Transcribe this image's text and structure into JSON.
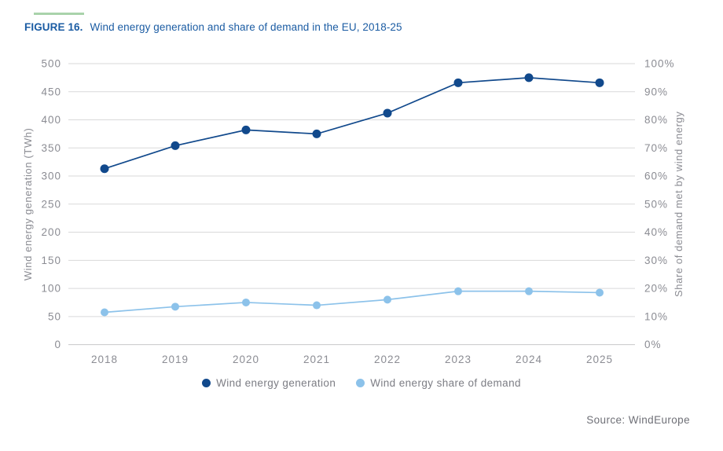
{
  "figure": {
    "label": "FIGURE 16.",
    "title": "Wind energy generation and share of demand in the EU, 2018-25"
  },
  "source": "Source: WindEurope",
  "colors": {
    "accent_green": "#a9d3ab",
    "title_blue": "#1b5ca3",
    "axis_text": "#8b8c93",
    "gridline": "#d9d9da",
    "axis_line": "#c7c8ca",
    "legend_text": "#7c7d84",
    "source_text": "#6f7077"
  },
  "chart_data": {
    "type": "line",
    "categories": [
      "2018",
      "2019",
      "2020",
      "2021",
      "2022",
      "2023",
      "2024",
      "2025"
    ],
    "series": [
      {
        "name": "Wind energy generation",
        "axis": "left",
        "unit": "TWh",
        "color": "#11498c",
        "values": [
          313,
          354,
          382,
          375,
          412,
          466,
          475,
          466
        ]
      },
      {
        "name": "Wind energy share of demand",
        "axis": "right",
        "unit": "%",
        "color": "#8cc2ea",
        "values": [
          11.5,
          13.5,
          15,
          14,
          16,
          19,
          19,
          18.5
        ]
      }
    ],
    "left_axis": {
      "label": "Wind energy generation (TWh)",
      "min": 0,
      "max": 500,
      "step": 50,
      "tick_labels": [
        "500",
        "450",
        "400",
        "350",
        "300",
        "250",
        "200",
        "150",
        "100",
        "50",
        "0"
      ]
    },
    "right_axis": {
      "label": "Share of demand met by wind energy",
      "min": 0,
      "max": 100,
      "step": 10,
      "tick_labels": [
        "100%",
        "90%",
        "80%",
        "70%",
        "60%",
        "50%",
        "40%",
        "30%",
        "20%",
        "10%",
        "0%"
      ]
    },
    "grid": true,
    "legend_position": "bottom"
  }
}
